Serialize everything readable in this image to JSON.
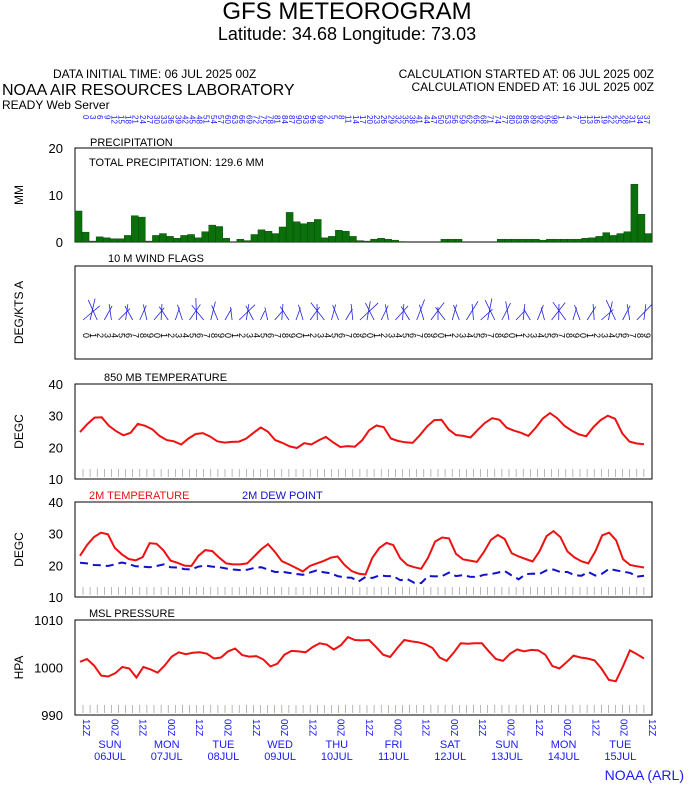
{
  "header": {
    "title": "GFS METEOROGRAM",
    "latlon": "Latitude: 34.68 Longitude:  73.03",
    "init_time": "DATA INITIAL TIME: 06 JUL 2025 00Z",
    "calc_started": "CALCULATION STARTED AT: 06 JUL 2025 00Z",
    "calc_ended": "CALCULATION ENDED AT: 16 JUL 2025 00Z",
    "org": "NOAA AIR RESOURCES LABORATORY",
    "server": "READY Web Server",
    "credit": "NOAA (ARL)"
  },
  "colors": {
    "precip": "#0b6f0b",
    "temp": "#ee1111",
    "dew": "#1111cc",
    "label": "#1a1aff",
    "wind": "#2222dd"
  },
  "chart_data": [
    {
      "type": "bar",
      "title": "PRECIPITATION",
      "annotation": "TOTAL PRECIPITATION: 129.6 MM",
      "ylabel": "MM",
      "ylim": [
        0,
        20
      ],
      "yticks": [
        0,
        10,
        20
      ],
      "values": [
        6.6,
        2.1,
        0.2,
        1.1,
        0.9,
        0.7,
        0.7,
        1.4,
        5.6,
        5.3,
        0.2,
        1.4,
        1.8,
        1.2,
        0.8,
        1.4,
        1.6,
        0.9,
        2.2,
        3.6,
        3.3,
        0.8,
        0,
        0.6,
        0.3,
        1.6,
        2.6,
        2.3,
        1.8,
        3.2,
        6.3,
        4.3,
        3.9,
        4.2,
        4.8,
        0.9,
        1.2,
        2.5,
        2.3,
        1.2,
        0.3,
        0.2,
        0.6,
        0.8,
        0.6,
        0.4,
        0.1,
        0,
        0,
        0,
        0,
        0,
        0.6,
        0.6,
        0.6,
        0,
        0,
        0,
        0,
        0,
        0.6,
        0.6,
        0.6,
        0.6,
        0.6,
        0.6,
        0.4,
        0.6,
        0.6,
        0.6,
        0.6,
        0.6,
        0.8,
        0.9,
        1.2,
        2,
        1.4,
        1.8,
        2.2,
        12.3,
        5.9,
        1.8
      ]
    },
    {
      "type": "wind",
      "title": "10 M  WIND FLAGS",
      "ylabel": "DEG/KTS  A",
      "directions": "01234567890123456789012345678901234567890123456789012345678901234567890123456789",
      "speeds": "4442222222222123433211422011221222422125332232242412224224433121214241222234224"
    },
    {
      "type": "line",
      "title": "850 MB  TEMPERATURE",
      "ylabel": "DEGC",
      "ylim": [
        10,
        40
      ],
      "yticks": [
        10,
        20,
        30,
        40
      ],
      "series": [
        {
          "values": [
            24.8,
            27.3,
            29.4,
            29.5,
            26.8,
            25.1,
            23.8,
            24.6,
            27.4,
            26.8,
            25.7,
            23.6,
            22.3,
            21.9,
            20.9,
            22.8,
            24.2,
            24.5,
            23.4,
            21.9,
            21.5,
            21.7,
            21.8,
            22.8,
            24.6,
            26.3,
            24.9,
            22.3,
            21.4,
            20.3,
            19.8,
            21.3,
            20.9,
            22.2,
            23.3,
            21.6,
            20.1,
            20.4,
            20.2,
            22.2,
            25.4,
            26.9,
            26.4,
            22.8,
            22,
            21.6,
            21.4,
            23.8,
            26.6,
            28.6,
            28.7,
            25.6,
            23.9,
            23.6,
            23.1,
            25.5,
            27.7,
            29.2,
            28.7,
            26.2,
            25.3,
            24.6,
            23.6,
            26.1,
            29.1,
            30.8,
            29.2,
            26.8,
            25.3,
            24.1,
            23.5,
            26.4,
            28.6,
            30,
            29,
            24.4,
            21.8,
            21.2,
            21
          ]
        }
      ]
    },
    {
      "type": "line",
      "legend": [
        "2M TEMPERATURE",
        "2M   DEW POINT"
      ],
      "ylabel": "DEGC",
      "ylim": [
        10,
        40
      ],
      "yticks": [
        10,
        20,
        30,
        40
      ],
      "series": [
        {
          "name": "2M TEMPERATURE",
          "values": [
            23,
            26.4,
            28.9,
            30.3,
            29.8,
            25.5,
            23.5,
            22,
            21.6,
            22.6,
            27,
            26.8,
            24.7,
            21.5,
            20.8,
            19.9,
            19.8,
            23,
            24.8,
            24.5,
            22.4,
            20.6,
            20.3,
            20.3,
            20.6,
            22.8,
            25,
            26.7,
            24.2,
            21.3,
            20.3,
            19.2,
            18.1,
            19.8,
            20.6,
            21.4,
            22.4,
            22.8,
            20.1,
            18.2,
            17.4,
            17.1,
            22.4,
            25.5,
            27.1,
            26.4,
            22.2,
            20.1,
            19.4,
            18.9,
            22.4,
            27.5,
            28.8,
            28.5,
            23.6,
            21.9,
            21.5,
            21.1,
            24.2,
            28,
            29.6,
            28.3,
            23.8,
            22.8,
            22,
            21.2,
            24.5,
            29.2,
            30.8,
            28.9,
            24.4,
            22.5,
            21.3,
            20.6,
            24.4,
            29.5,
            30.3,
            27.9,
            21.9,
            20.1,
            19.7,
            19.3
          ]
        },
        {
          "name": "2M   DEW POINT",
          "values": [
            20.8,
            20.6,
            20.1,
            20,
            19.8,
            20.3,
            20.9,
            20.4,
            19.7,
            19.6,
            19.4,
            19.8,
            20.3,
            19.4,
            19.3,
            18.8,
            18.7,
            19.6,
            19.9,
            19.6,
            19.4,
            19,
            18.7,
            18.5,
            18.6,
            19.2,
            19.4,
            18.7,
            17.9,
            18,
            17.6,
            17.3,
            17,
            17.7,
            18.4,
            17.8,
            17.5,
            16.6,
            16.2,
            16.1,
            14.9,
            16.3,
            16,
            16.8,
            16.6,
            16.6,
            15.3,
            15.7,
            14.5,
            14.4,
            16.6,
            16.5,
            16.6,
            17.7,
            16.6,
            16.9,
            16.4,
            16.3,
            17,
            17.2,
            17.7,
            18.2,
            16.8,
            15.6,
            17.2,
            17.4,
            17.3,
            18.4,
            18.7,
            17.9,
            17.9,
            16.9,
            16.7,
            17.9,
            16.8,
            17.4,
            18.9,
            18.4,
            18,
            17.6,
            16.4,
            16.7
          ]
        }
      ]
    },
    {
      "type": "line",
      "title": "MSL PRESSURE",
      "ylabel": "HPA",
      "ylim": [
        990,
        1010
      ],
      "yticks": [
        990,
        1000,
        1010
      ],
      "series": [
        {
          "values": [
            1001.2,
            1001.8,
            1000.4,
            998.3,
            998.1,
            998.8,
            1000.1,
            999.8,
            997.9,
            1000.1,
            999.6,
            998.9,
            1000.4,
            1002.3,
            1003.2,
            1002.8,
            1003.1,
            1003.2,
            1002.9,
            1001.9,
            1002.1,
            1003.4,
            1004,
            1002.6,
            1002.3,
            1002.4,
            1001.7,
            1000.2,
            1000.8,
            1002.7,
            1003.5,
            1003.4,
            1003.2,
            1004.3,
            1005.1,
            1004.8,
            1003.8,
            1004.7,
            1006.4,
            1005.8,
            1005.7,
            1005.8,
            1004.3,
            1002.7,
            1002.2,
            1004.1,
            1005.8,
            1005.5,
            1005.3,
            1004.9,
            1004.1,
            1002.1,
            1001.4,
            1003.1,
            1005.1,
            1005,
            1005.1,
            1005.1,
            1003.4,
            1001.8,
            1001.4,
            1002.9,
            1003.8,
            1003.4,
            1003.7,
            1003.6,
            1002.7,
            1000.3,
            999.8,
            1001.1,
            1002.5,
            1002.1,
            1001.9,
            1001.5,
            999.7,
            997.4,
            997.1,
            1000.2,
            1003.6,
            1002.8,
            1001.9
          ]
        }
      ]
    }
  ],
  "time_axis": {
    "hour_labels": [
      "12Z",
      "00Z",
      "12Z",
      "00Z",
      "12Z",
      "00Z",
      "12Z",
      "00Z",
      "12Z",
      "00Z",
      "12Z",
      "00Z",
      "12Z",
      "00Z",
      "12Z",
      "00Z",
      "12Z",
      "00Z",
      "12Z",
      "00Z",
      "12Z"
    ],
    "days": [
      {
        "day": "SUN",
        "date": "06JUL"
      },
      {
        "day": "MON",
        "date": "07JUL"
      },
      {
        "day": "TUE",
        "date": "08JUL"
      },
      {
        "day": "WED",
        "date": "09JUL"
      },
      {
        "day": "THU",
        "date": "10JUL"
      },
      {
        "day": "FRI",
        "date": "11JUL"
      },
      {
        "day": "SAT",
        "date": "12JUL"
      },
      {
        "day": "SUN",
        "date": "13JUL"
      },
      {
        "day": "MON",
        "date": "14JUL"
      },
      {
        "day": "TUE",
        "date": "15JUL"
      }
    ]
  }
}
